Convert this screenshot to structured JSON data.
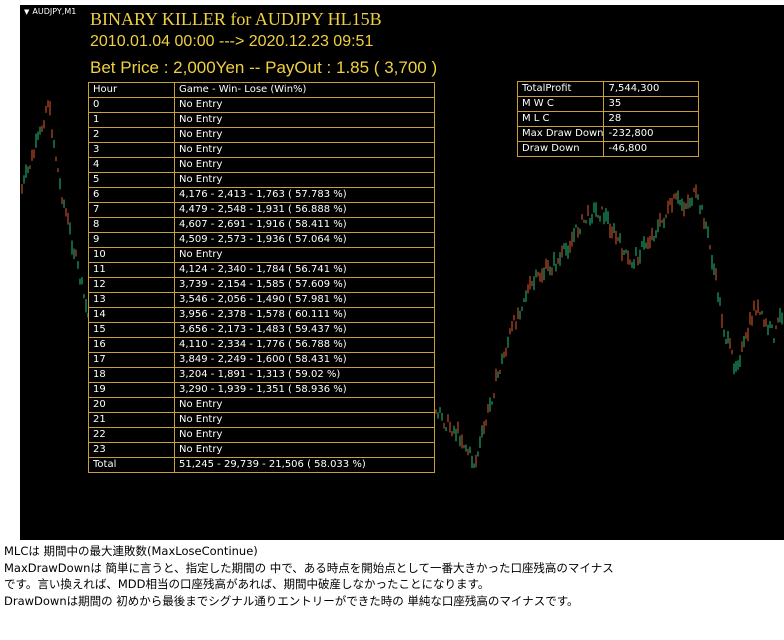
{
  "chart": {
    "symbol": "AUDJPY,M1",
    "background": "#000000",
    "candle_up_color": "#22c080",
    "candle_down_color": "#e05a30",
    "table_border_color": "#c8a038",
    "overlay_text_color": "#f0d040"
  },
  "overlay": {
    "title": "BINARY KILLER for AUDJPY HL15B",
    "period": "2010.01.04 00:00 ---> 2020.12.23 09:51",
    "bet": "Bet Price : 2,000Yen -- PayOut : 1.85 ( 3,700 )"
  },
  "hour_table": {
    "headers": [
      "Hour",
      "Game - Win- Lose (Win%)"
    ],
    "rows": [
      [
        "0",
        "No Entry"
      ],
      [
        "1",
        "No Entry"
      ],
      [
        "2",
        "No Entry"
      ],
      [
        "3",
        "No Entry"
      ],
      [
        "4",
        "No Entry"
      ],
      [
        "5",
        "No Entry"
      ],
      [
        "6",
        "4,176 - 2,413 - 1,763 ( 57.783 %)"
      ],
      [
        "7",
        "4,479 - 2,548 - 1,931 ( 56.888 %)"
      ],
      [
        "8",
        "4,607 - 2,691 - 1,916 ( 58.411 %)"
      ],
      [
        "9",
        "4,509 - 2,573 - 1,936 ( 57.064 %)"
      ],
      [
        "10",
        "No Entry"
      ],
      [
        "11",
        "4,124 - 2,340 - 1,784 ( 56.741 %)"
      ],
      [
        "12",
        "3,739 - 2,154 - 1,585 ( 57.609 %)"
      ],
      [
        "13",
        "3,546 - 2,056 - 1,490 ( 57.981 %)"
      ],
      [
        "14",
        "3,956 - 2,378 - 1,578 ( 60.111 %)"
      ],
      [
        "15",
        "3,656 - 2,173 - 1,483 ( 59.437 %)"
      ],
      [
        "16",
        "4,110 - 2,334 - 1,776 ( 56.788 %)"
      ],
      [
        "17",
        "3,849 - 2,249 - 1,600 ( 58.431 %)"
      ],
      [
        "18",
        "3,204 - 1,891 - 1,313 ( 59.02 %)"
      ],
      [
        "19",
        "3,290 - 1,939 - 1,351 ( 58.936 %)"
      ],
      [
        "20",
        "No Entry"
      ],
      [
        "21",
        "No Entry"
      ],
      [
        "22",
        "No Entry"
      ],
      [
        "23",
        "No Entry"
      ],
      [
        "Total",
        "51,245 - 29,739 - 21,506 ( 58.033 %)"
      ]
    ]
  },
  "stats_table": {
    "rows": [
      [
        "TotalProfit",
        "7,544,300"
      ],
      [
        "M W C",
        "35"
      ],
      [
        "M L C",
        "28"
      ],
      [
        "Max Draw Down",
        "-232,800"
      ],
      [
        "Draw Down",
        "-46,800"
      ]
    ]
  },
  "notes": [
    "MLCは 期間中の最大連敗数(MaxLoseContinue)",
    "MaxDrawDownは 簡単に言うと、指定した期間の 中で、ある時点を開始点として一番大きかった口座残高のマイナス",
    "です。言い換えれば、MDD相当の口座残高があれば、期間中破産しなかったことになります。",
    "DrawDownは期間の 初めから最後までシグナル通りエントリーができた時の 単純な口座残高のマイナスです。"
  ]
}
